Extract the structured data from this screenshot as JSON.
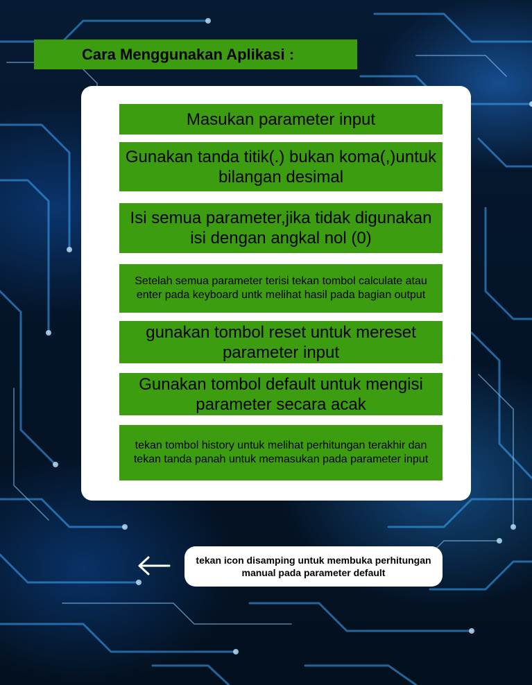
{
  "header": {
    "title": "Cara Menggunakan Aplikasi :"
  },
  "steps": [
    {
      "text": "Masukan parameter input"
    },
    {
      "text": "Gunakan tanda titik(.) bukan koma(,)untuk bilangan desimal"
    },
    {
      "text": "Isi semua parameter,jika tidak digunakan isi dengan angkal nol (0)"
    },
    {
      "text": "Setelah semua parameter terisi tekan tombol calculate atau enter pada keyboard untk melihat hasil pada bagian output"
    },
    {
      "text": "gunakan tombol reset untuk mereset parameter input"
    },
    {
      "text": "Gunakan tombol default untuk mengisi parameter secara acak"
    },
    {
      "text": "tekan tombol history untuk melihat perhitungan terakhir dan tekan tanda panah untuk memasukan pada parameter input"
    }
  ],
  "hint": {
    "icon": "arrow-left-icon",
    "text": "tekan icon disamping untuk membuka perhitungan manual pada parameter default"
  },
  "colors": {
    "accent_green": "#3c9d10",
    "card_background": "#ffffff",
    "background_dark": "#03101e",
    "circuit_glow": "#3fa9ff"
  }
}
